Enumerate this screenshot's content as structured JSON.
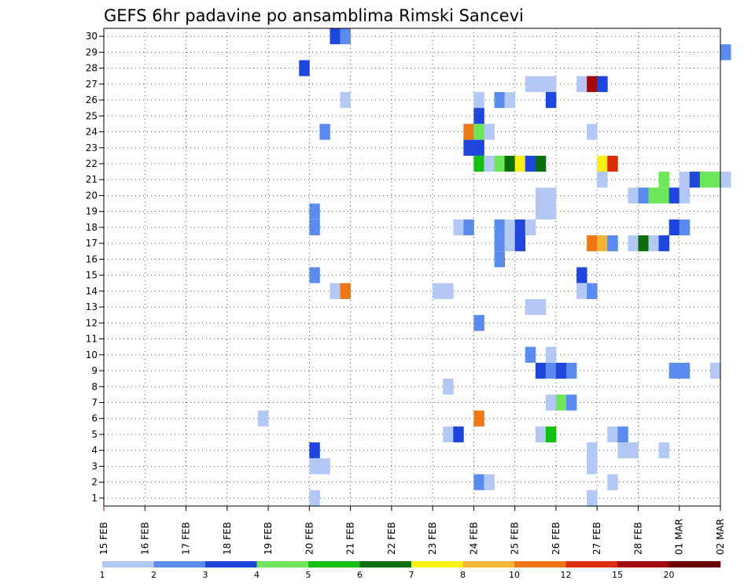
{
  "chart_data": {
    "type": "heatmap",
    "title": "GEFS 6hr padavine po ansamblima Rimski Sancevi",
    "y_ticks": [
      "1",
      "2",
      "3",
      "4",
      "5",
      "6",
      "7",
      "8",
      "9",
      "10",
      "11",
      "12",
      "13",
      "14",
      "15",
      "16",
      "17",
      "18",
      "19",
      "20",
      "21",
      "22",
      "23",
      "24",
      "25",
      "26",
      "27",
      "28",
      "29",
      "30"
    ],
    "x_ticks": [
      "15 FEB",
      "16 FEB",
      "17 FEB",
      "18 FEB",
      "19 FEB",
      "20 FEB",
      "21 FEB",
      "22 FEB",
      "23 FEB",
      "24 FEB",
      "25 FEB",
      "26 FEB",
      "27 FEB",
      "28 FEB",
      "01 MAR",
      "02 MAR"
    ],
    "x_range": [
      "15 FEB",
      "02 MAR"
    ],
    "y_range": [
      0,
      30
    ],
    "grid": "dotted",
    "colorbar": {
      "labels": [
        "1",
        "2",
        "3",
        "4",
        "5",
        "6",
        "7",
        "8",
        "10",
        "12",
        "15",
        "20"
      ],
      "colors": [
        "#b4c8f5",
        "#5a8cf0",
        "#1e46dc",
        "#6ee65a",
        "#14be14",
        "#0a6e0a",
        "#faf014",
        "#f5b432",
        "#f07814",
        "#dc2d0a",
        "#a00a0a",
        "#6e0000"
      ]
    },
    "cell_hours": 6,
    "cells": [
      {
        "m": 30,
        "t": "20 FEB 12Z",
        "v": 3
      },
      {
        "m": 30,
        "t": "20 FEB 18Z",
        "v": 2
      },
      {
        "m": 29,
        "t": "02 MAR 00Z",
        "v": 2
      },
      {
        "m": 28,
        "t": "19 FEB 18Z",
        "v": 3
      },
      {
        "m": 27,
        "t": "25 FEB 06Z",
        "v": 1
      },
      {
        "m": 27,
        "t": "25 FEB 12Z",
        "v": 1
      },
      {
        "m": 27,
        "t": "25 FEB 18Z",
        "v": 1
      },
      {
        "m": 27,
        "t": "26 FEB 12Z",
        "v": 1
      },
      {
        "m": 27,
        "t": "26 FEB 18Z",
        "v": 15
      },
      {
        "m": 27,
        "t": "27 FEB 00Z",
        "v": 3
      },
      {
        "m": 26,
        "t": "20 FEB 18Z",
        "v": 1
      },
      {
        "m": 26,
        "t": "24 FEB 00Z",
        "v": 1
      },
      {
        "m": 26,
        "t": "24 FEB 12Z",
        "v": 2
      },
      {
        "m": 26,
        "t": "24 FEB 18Z",
        "v": 1
      },
      {
        "m": 26,
        "t": "25 FEB 18Z",
        "v": 3
      },
      {
        "m": 25,
        "t": "24 FEB 00Z",
        "v": 3
      },
      {
        "m": 24,
        "t": "20 FEB 06Z",
        "v": 2
      },
      {
        "m": 24,
        "t": "23 FEB 18Z",
        "v": 10
      },
      {
        "m": 24,
        "t": "24 FEB 00Z",
        "v": 4
      },
      {
        "m": 24,
        "t": "24 FEB 06Z",
        "v": 1
      },
      {
        "m": 24,
        "t": "26 FEB 18Z",
        "v": 1
      },
      {
        "m": 23,
        "t": "23 FEB 18Z",
        "v": 3
      },
      {
        "m": 23,
        "t": "24 FEB 00Z",
        "v": 3
      },
      {
        "m": 22,
        "t": "24 FEB 00Z",
        "v": 5
      },
      {
        "m": 22,
        "t": "24 FEB 06Z",
        "v": 1
      },
      {
        "m": 22,
        "t": "24 FEB 12Z",
        "v": 4
      },
      {
        "m": 22,
        "t": "24 FEB 18Z",
        "v": 6
      },
      {
        "m": 22,
        "t": "25 FEB 00Z",
        "v": 7
      },
      {
        "m": 22,
        "t": "25 FEB 06Z",
        "v": 3
      },
      {
        "m": 22,
        "t": "25 FEB 12Z",
        "v": 6
      },
      {
        "m": 22,
        "t": "27 FEB 00Z",
        "v": 7
      },
      {
        "m": 22,
        "t": "27 FEB 06Z",
        "v": 12
      },
      {
        "m": 21,
        "t": "27 FEB 00Z",
        "v": 1
      },
      {
        "m": 21,
        "t": "28 FEB 12Z",
        "v": 4
      },
      {
        "m": 21,
        "t": "01 MAR 00Z",
        "v": 1
      },
      {
        "m": 21,
        "t": "01 MAR 06Z",
        "v": 3
      },
      {
        "m": 21,
        "t": "01 MAR 12Z",
        "v": 4
      },
      {
        "m": 21,
        "t": "01 MAR 18Z",
        "v": 4
      },
      {
        "m": 21,
        "t": "02 MAR 00Z",
        "v": 1
      },
      {
        "m": 20,
        "t": "25 FEB 12Z",
        "v": 1
      },
      {
        "m": 20,
        "t": "25 FEB 18Z",
        "v": 1
      },
      {
        "m": 20,
        "t": "27 FEB 18Z",
        "v": 1
      },
      {
        "m": 20,
        "t": "28 FEB 00Z",
        "v": 2
      },
      {
        "m": 20,
        "t": "28 FEB 06Z",
        "v": 4
      },
      {
        "m": 20,
        "t": "28 FEB 12Z",
        "v": 4
      },
      {
        "m": 20,
        "t": "28 FEB 18Z",
        "v": 3
      },
      {
        "m": 20,
        "t": "01 MAR 00Z",
        "v": 1
      },
      {
        "m": 19,
        "t": "25 FEB 12Z",
        "v": 1
      },
      {
        "m": 19,
        "t": "25 FEB 18Z",
        "v": 1
      },
      {
        "m": 19,
        "t": "20 FEB 00Z",
        "v": 2
      },
      {
        "m": 18,
        "t": "20 FEB 00Z",
        "v": 2
      },
      {
        "m": 18,
        "t": "23 FEB 12Z",
        "v": 1
      },
      {
        "m": 18,
        "t": "23 FEB 18Z",
        "v": 2
      },
      {
        "m": 18,
        "t": "24 FEB 12Z",
        "v": 2
      },
      {
        "m": 18,
        "t": "24 FEB 18Z",
        "v": 1
      },
      {
        "m": 18,
        "t": "25 FEB 00Z",
        "v": 3
      },
      {
        "m": 18,
        "t": "25 FEB 06Z",
        "v": 1
      },
      {
        "m": 18,
        "t": "28 FEB 18Z",
        "v": 3
      },
      {
        "m": 18,
        "t": "01 MAR 00Z",
        "v": 2
      },
      {
        "m": 17,
        "t": "24 FEB 12Z",
        "v": 2
      },
      {
        "m": 17,
        "t": "24 FEB 18Z",
        "v": 1
      },
      {
        "m": 17,
        "t": "25 FEB 00Z",
        "v": 3
      },
      {
        "m": 17,
        "t": "26 FEB 18Z",
        "v": 10
      },
      {
        "m": 17,
        "t": "27 FEB 00Z",
        "v": 8
      },
      {
        "m": 17,
        "t": "27 FEB 06Z",
        "v": 2
      },
      {
        "m": 17,
        "t": "27 FEB 18Z",
        "v": 1
      },
      {
        "m": 17,
        "t": "28 FEB 00Z",
        "v": 6
      },
      {
        "m": 17,
        "t": "28 FEB 06Z",
        "v": 1
      },
      {
        "m": 17,
        "t": "28 FEB 12Z",
        "v": 3
      },
      {
        "m": 16,
        "t": "24 FEB 12Z",
        "v": 2
      },
      {
        "m": 15,
        "t": "20 FEB 00Z",
        "v": 2
      },
      {
        "m": 15,
        "t": "26 FEB 12Z",
        "v": 3
      },
      {
        "m": 14,
        "t": "20 FEB 12Z",
        "v": 1
      },
      {
        "m": 14,
        "t": "20 FEB 18Z",
        "v": 10
      },
      {
        "m": 14,
        "t": "23 FEB 00Z",
        "v": 1
      },
      {
        "m": 14,
        "t": "23 FEB 06Z",
        "v": 1
      },
      {
        "m": 14,
        "t": "26 FEB 12Z",
        "v": 1
      },
      {
        "m": 14,
        "t": "26 FEB 18Z",
        "v": 2
      },
      {
        "m": 13,
        "t": "25 FEB 06Z",
        "v": 1
      },
      {
        "m": 13,
        "t": "25 FEB 12Z",
        "v": 1
      },
      {
        "m": 12,
        "t": "24 FEB 00Z",
        "v": 2
      },
      {
        "m": 10,
        "t": "25 FEB 06Z",
        "v": 2
      },
      {
        "m": 10,
        "t": "25 FEB 18Z",
        "v": 1
      },
      {
        "m": 9,
        "t": "25 FEB 12Z",
        "v": 3
      },
      {
        "m": 9,
        "t": "25 FEB 18Z",
        "v": 2
      },
      {
        "m": 9,
        "t": "26 FEB 00Z",
        "v": 3
      },
      {
        "m": 9,
        "t": "26 FEB 06Z",
        "v": 2
      },
      {
        "m": 9,
        "t": "28 FEB 18Z",
        "v": 2
      },
      {
        "m": 9,
        "t": "01 MAR 00Z",
        "v": 2
      },
      {
        "m": 9,
        "t": "01 MAR 18Z",
        "v": 1
      },
      {
        "m": 8,
        "t": "23 FEB 06Z",
        "v": 1
      },
      {
        "m": 7,
        "t": "25 FEB 18Z",
        "v": 1
      },
      {
        "m": 7,
        "t": "26 FEB 00Z",
        "v": 4
      },
      {
        "m": 7,
        "t": "26 FEB 06Z",
        "v": 2
      },
      {
        "m": 6,
        "t": "18 FEB 18Z",
        "v": 1
      },
      {
        "m": 6,
        "t": "24 FEB 00Z",
        "v": 10
      },
      {
        "m": 5,
        "t": "23 FEB 06Z",
        "v": 1
      },
      {
        "m": 5,
        "t": "23 FEB 12Z",
        "v": 3
      },
      {
        "m": 5,
        "t": "25 FEB 12Z",
        "v": 1
      },
      {
        "m": 5,
        "t": "25 FEB 18Z",
        "v": 5
      },
      {
        "m": 5,
        "t": "27 FEB 06Z",
        "v": 1
      },
      {
        "m": 5,
        "t": "27 FEB 12Z",
        "v": 2
      },
      {
        "m": 4,
        "t": "20 FEB 00Z",
        "v": 3
      },
      {
        "m": 4,
        "t": "26 FEB 18Z",
        "v": 1
      },
      {
        "m": 4,
        "t": "27 FEB 12Z",
        "v": 1
      },
      {
        "m": 4,
        "t": "27 FEB 18Z",
        "v": 1
      },
      {
        "m": 4,
        "t": "28 FEB 12Z",
        "v": 1
      },
      {
        "m": 3,
        "t": "20 FEB 00Z",
        "v": 1
      },
      {
        "m": 3,
        "t": "20 FEB 06Z",
        "v": 1
      },
      {
        "m": 3,
        "t": "26 FEB 18Z",
        "v": 1
      },
      {
        "m": 2,
        "t": "24 FEB 00Z",
        "v": 2
      },
      {
        "m": 2,
        "t": "24 FEB 06Z",
        "v": 1
      },
      {
        "m": 2,
        "t": "27 FEB 06Z",
        "v": 1
      },
      {
        "m": 1,
        "t": "20 FEB 00Z",
        "v": 1
      },
      {
        "m": 1,
        "t": "26 FEB 18Z",
        "v": 1
      }
    ]
  }
}
